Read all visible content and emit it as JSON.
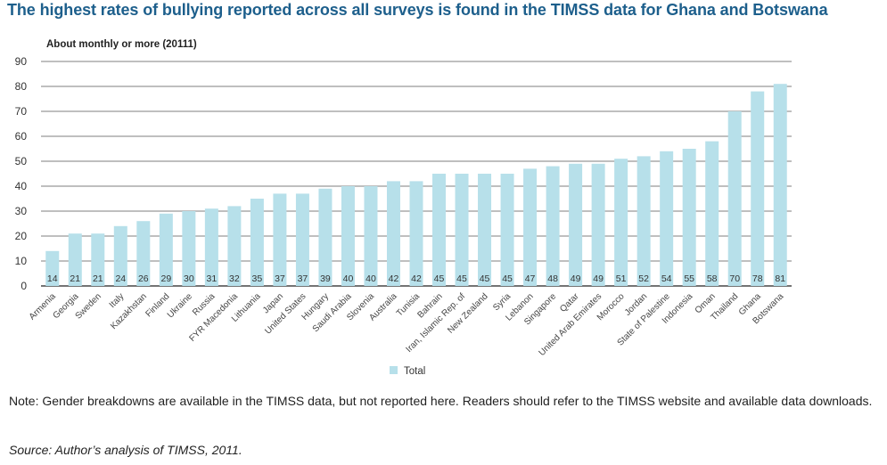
{
  "title": "The highest rates of bullying reported across all surveys is found in the TIMSS data for Ghana and Botswana",
  "note": "Note: Gender breakdowns are available in the TIMSS data, but not reported here. Readers should refer to the TIMSS website and available data downloads.",
  "source": "Source: Author’s analysis of TIMSS, 2011.",
  "chart_data": {
    "type": "bar",
    "ylabel": "About monthly or more (20111)",
    "xlabel": "",
    "ylim": [
      0,
      90
    ],
    "yticks": [
      0,
      10,
      20,
      30,
      40,
      50,
      60,
      70,
      80,
      90
    ],
    "grid": true,
    "legend_position": "bottom-center",
    "bar_color": "#b7e0ea",
    "categories": [
      "Armenia",
      "Georgia",
      "Sweden",
      "Italy",
      "Kazakhstan",
      "Finland",
      "Ukraine",
      "Russia",
      "FYR Macedonia",
      "Lithuania",
      "Japan",
      "United States",
      "Hungary",
      "Saudi Arabia",
      "Slovenia",
      "Australia",
      "Tunisia",
      "Bahrain",
      "Iran, Islamic Rep. of",
      "New Zealand",
      "Syria",
      "Lebanon",
      "Singapore",
      "Qatar",
      "United Arab Emirates",
      "Morocco",
      "Jordan",
      "State of Palestine",
      "Indonesia",
      "Oman",
      "Thailand",
      "Ghana",
      "Botswana"
    ],
    "series": [
      {
        "name": "Total",
        "values": [
          14,
          21,
          21,
          24,
          26,
          29,
          30,
          31,
          32,
          35,
          37,
          37,
          39,
          40,
          40,
          42,
          42,
          45,
          45,
          45,
          45,
          47,
          48,
          49,
          49,
          51,
          52,
          54,
          55,
          58,
          70,
          78,
          81
        ]
      }
    ]
  }
}
